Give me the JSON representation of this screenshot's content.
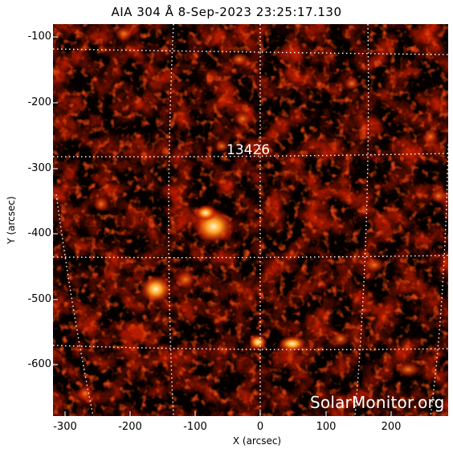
{
  "header": {
    "title": "AIA 304 Å   8-Sep-2023 23:25:17.130"
  },
  "map": {
    "instrument": "AIA",
    "wavelength": "304 Å",
    "colormap": "red-orange-white (sdoaia304)",
    "x_range_arcsec": [
      -320,
      285
    ],
    "y_range_arcsec": [
      -680,
      -75
    ],
    "grid": "on (heliographic, dotted white)",
    "active_region": {
      "label": "13426"
    },
    "watermark": "SolarMonitor.org"
  },
  "axes": {
    "xlabel": "X (arcsec)",
    "ylabel": "Y (arcsec)",
    "x_ticks": [
      "-300",
      "-200",
      "-100",
      "0",
      "100",
      "200"
    ],
    "y_ticks": [
      "-100",
      "-200",
      "-300",
      "-400",
      "-500",
      "-600"
    ]
  }
}
